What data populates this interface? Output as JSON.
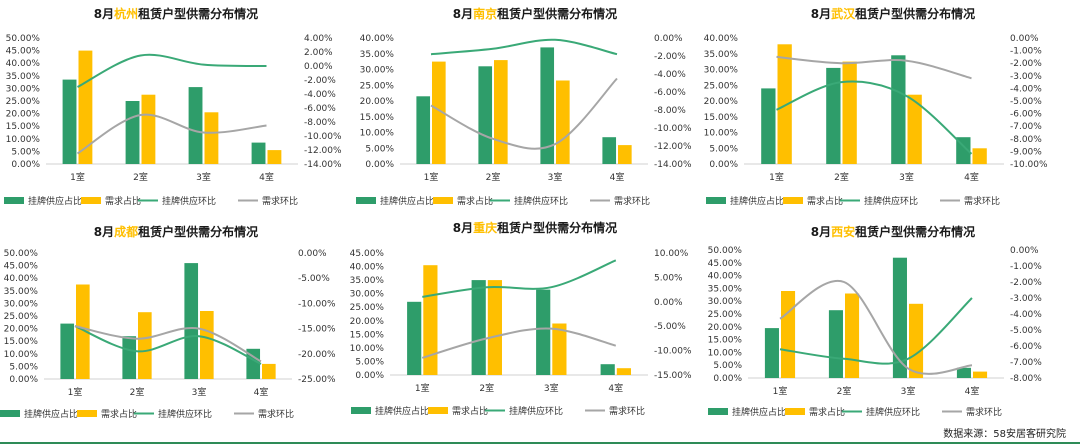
{
  "colors": {
    "supply_bar": "#2e9d6a",
    "demand_bar": "#ffbf00",
    "supply_line": "#3aa977",
    "demand_line": "#a6a6a6",
    "city_highlight": "#ffbf00",
    "title": "#1a1a1a"
  },
  "footer": {
    "source": "数据来源：58安居客研究院"
  },
  "chart_data": [
    {
      "type": "bar",
      "title": {
        "prefix": "8月",
        "city": "杭州",
        "suffix": "租赁户型供需分布情况"
      },
      "categories": [
        "1室",
        "2室",
        "3室",
        "4室"
      ],
      "left_ticks": [
        "50.00%",
        "45.00%",
        "40.00%",
        "35.00%",
        "30.00%",
        "25.00%",
        "20.00%",
        "15.00%",
        "10.00%",
        "5.00%",
        "0.00%"
      ],
      "right_ticks": [
        "4.00%",
        "2.00%",
        "0.00%",
        "-2.00%",
        "-4.00%",
        "-6.00%",
        "-8.00%",
        "-10.00%",
        "-12.00%",
        "-14.00%"
      ],
      "ylim_left": [
        0,
        50
      ],
      "ylim_right": [
        -14,
        4
      ],
      "series": [
        {
          "name": "挂牌供应占比",
          "kind": "bar",
          "axis": "left",
          "values": [
            33.5,
            25,
            30.5,
            8.5
          ]
        },
        {
          "name": "需求占比",
          "kind": "bar",
          "axis": "left",
          "values": [
            45,
            27.5,
            20.5,
            5.5
          ]
        },
        {
          "name": "挂牌供应环比",
          "kind": "line",
          "axis": "right",
          "values": [
            -3,
            1.5,
            0.2,
            0
          ]
        },
        {
          "name": "需求环比",
          "kind": "line",
          "axis": "right",
          "values": [
            -12.5,
            -7,
            -9.5,
            -8.5
          ]
        }
      ]
    },
    {
      "type": "bar",
      "title": {
        "prefix": "8月",
        "city": "南京",
        "suffix": "租赁户型供需分布情况"
      },
      "categories": [
        "1室",
        "2室",
        "3室",
        "4室"
      ],
      "left_ticks": [
        "40.00%",
        "35.00%",
        "30.00%",
        "25.00%",
        "20.00%",
        "15.00%",
        "10.00%",
        "5.00%",
        "0.00%"
      ],
      "right_ticks": [
        "0.00%",
        "-2.00%",
        "-4.00%",
        "-6.00%",
        "-8.00%",
        "-10.00%",
        "-12.00%",
        "-14.00%"
      ],
      "ylim_left": [
        0,
        40
      ],
      "ylim_right": [
        -14,
        0
      ],
      "series": [
        {
          "name": "挂牌供应占比",
          "kind": "bar",
          "axis": "left",
          "values": [
            21.5,
            31,
            37,
            8.5
          ]
        },
        {
          "name": "需求占比",
          "kind": "bar",
          "axis": "left",
          "values": [
            32.5,
            33,
            26.5,
            6
          ]
        },
        {
          "name": "挂牌供应环比",
          "kind": "line",
          "axis": "right",
          "values": [
            -1.8,
            -1.2,
            -0.2,
            -1.8
          ]
        },
        {
          "name": "需求环比",
          "kind": "line",
          "axis": "right",
          "values": [
            -7.5,
            -11.2,
            -11.8,
            -4.5
          ]
        }
      ]
    },
    {
      "type": "bar",
      "title": {
        "prefix": "8月",
        "city": "武汉",
        "suffix": "租赁户型供需分布情况"
      },
      "categories": [
        "1室",
        "2室",
        "3室",
        "4室"
      ],
      "left_ticks": [
        "40.00%",
        "35.00%",
        "30.00%",
        "25.00%",
        "20.00%",
        "15.00%",
        "10.00%",
        "5.00%",
        "0.00%"
      ],
      "right_ticks": [
        "0.00%",
        "-1.00%",
        "-2.00%",
        "-3.00%",
        "-4.00%",
        "-5.00%",
        "-6.00%",
        "-7.00%",
        "-8.00%",
        "-9.00%",
        "-10.00%"
      ],
      "ylim_left": [
        0,
        40
      ],
      "ylim_right": [
        -10,
        0
      ],
      "series": [
        {
          "name": "挂牌供应占比",
          "kind": "bar",
          "axis": "left",
          "values": [
            24,
            30.5,
            34.5,
            8.5
          ]
        },
        {
          "name": "需求占比",
          "kind": "bar",
          "axis": "left",
          "values": [
            38,
            32.5,
            22,
            5
          ]
        },
        {
          "name": "挂牌供应环比",
          "kind": "line",
          "axis": "right",
          "values": [
            -5.7,
            -3.5,
            -4.6,
            -9.2
          ]
        },
        {
          "name": "需求环比",
          "kind": "line",
          "axis": "right",
          "values": [
            -1.5,
            -2,
            -1.8,
            -3.2
          ]
        }
      ]
    },
    {
      "type": "bar",
      "title": {
        "prefix": "8月",
        "city": "成都",
        "suffix": "租赁户型供需分布情况"
      },
      "categories": [
        "1室",
        "2室",
        "3室",
        "4室"
      ],
      "left_ticks": [
        "50.00%",
        "45.00%",
        "40.00%",
        "35.00%",
        "30.00%",
        "25.00%",
        "20.00%",
        "15.00%",
        "10.00%",
        "5.00%",
        "0.00%"
      ],
      "right_ticks": [
        "0.00%",
        "-5.00%",
        "-10.00%",
        "-15.00%",
        "-20.00%",
        "-25.00%"
      ],
      "ylim_left": [
        0,
        50
      ],
      "ylim_right": [
        -25,
        0
      ],
      "series": [
        {
          "name": "挂牌供应占比",
          "kind": "bar",
          "axis": "left",
          "values": [
            22,
            17,
            46,
            12
          ]
        },
        {
          "name": "需求占比",
          "kind": "bar",
          "axis": "left",
          "values": [
            37.5,
            26.5,
            27,
            6
          ]
        },
        {
          "name": "挂牌供应环比",
          "kind": "line",
          "axis": "right",
          "values": [
            -14.5,
            -19.5,
            -16.5,
            -22
          ]
        },
        {
          "name": "需求环比",
          "kind": "line",
          "axis": "right",
          "values": [
            -14.5,
            -17,
            -15,
            -21.5
          ]
        }
      ]
    },
    {
      "type": "bar",
      "title": {
        "prefix": "8月",
        "city": "重庆",
        "suffix": "租赁户型供需分布情况"
      },
      "categories": [
        "1室",
        "2室",
        "3室",
        "4室"
      ],
      "left_ticks": [
        "45.00%",
        "40.00%",
        "35.00%",
        "30.00%",
        "25.00%",
        "20.00%",
        "15.00%",
        "10.00%",
        "5.00%",
        "0.00%"
      ],
      "right_ticks": [
        "10.00%",
        "5.00%",
        "0.00%",
        "-5.00%",
        "-10.00%",
        "-15.00%"
      ],
      "ylim_left": [
        0,
        45
      ],
      "ylim_right": [
        -15,
        10
      ],
      "series": [
        {
          "name": "挂牌供应占比",
          "kind": "bar",
          "axis": "left",
          "values": [
            27,
            35,
            31.5,
            4
          ]
        },
        {
          "name": "需求占比",
          "kind": "bar",
          "axis": "left",
          "values": [
            40.5,
            35,
            19,
            2.5
          ]
        },
        {
          "name": "挂牌供应环比",
          "kind": "line",
          "axis": "right",
          "values": [
            1,
            3,
            3,
            8.5
          ]
        },
        {
          "name": "需求环比",
          "kind": "line",
          "axis": "right",
          "values": [
            -11.5,
            -7.5,
            -5.5,
            -9
          ]
        }
      ]
    },
    {
      "type": "bar",
      "title": {
        "prefix": "8月",
        "city": "西安",
        "suffix": "租赁户型供需分布情况"
      },
      "categories": [
        "1室",
        "2室",
        "3室",
        "4室"
      ],
      "left_ticks": [
        "50.00%",
        "45.00%",
        "40.00%",
        "35.00%",
        "30.00%",
        "25.00%",
        "20.00%",
        "15.00%",
        "10.00%",
        "5.00%",
        "0.00%"
      ],
      "right_ticks": [
        "0.00%",
        "-1.00%",
        "-2.00%",
        "-3.00%",
        "-4.00%",
        "-5.00%",
        "-6.00%",
        "-7.00%",
        "-8.00%"
      ],
      "ylim_left": [
        0,
        50
      ],
      "ylim_right": [
        -8,
        0
      ],
      "series": [
        {
          "name": "挂牌供应占比",
          "kind": "bar",
          "axis": "left",
          "values": [
            19.5,
            26.5,
            47,
            4
          ]
        },
        {
          "name": "需求占比",
          "kind": "bar",
          "axis": "left",
          "values": [
            34,
            33,
            29,
            2.5
          ]
        },
        {
          "name": "挂牌供应环比",
          "kind": "line",
          "axis": "right",
          "values": [
            -6.2,
            -6.8,
            -6.8,
            -3
          ]
        },
        {
          "name": "需求环比",
          "kind": "line",
          "axis": "right",
          "values": [
            -4.3,
            -2,
            -7.4,
            -7.2
          ]
        }
      ]
    }
  ]
}
